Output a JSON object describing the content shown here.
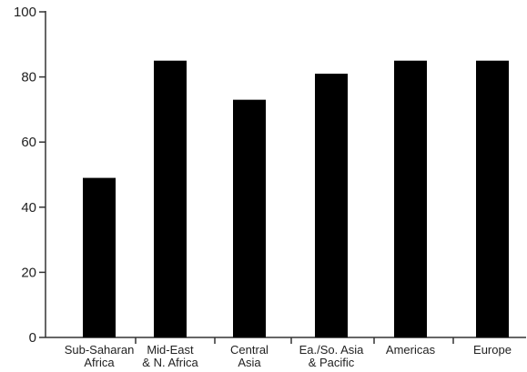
{
  "chart_data": {
    "type": "bar",
    "title": "",
    "xlabel": "",
    "ylabel": "",
    "categories": [
      [
        "Sub-Saharan",
        "Africa"
      ],
      [
        "Mid-East",
        "& N. Africa"
      ],
      [
        "Central",
        "Asia"
      ],
      [
        "Ea./So. Asia",
        "& Pacific"
      ],
      [
        "Americas"
      ],
      [
        "Europe"
      ]
    ],
    "values": [
      49,
      85,
      73,
      81,
      85,
      85
    ],
    "ylim": [
      0,
      100
    ],
    "yticks": [
      0,
      20,
      40,
      60,
      80,
      100
    ],
    "grid": false,
    "legend": "none",
    "bar_color": "#000000",
    "axis_color": "#333333"
  }
}
